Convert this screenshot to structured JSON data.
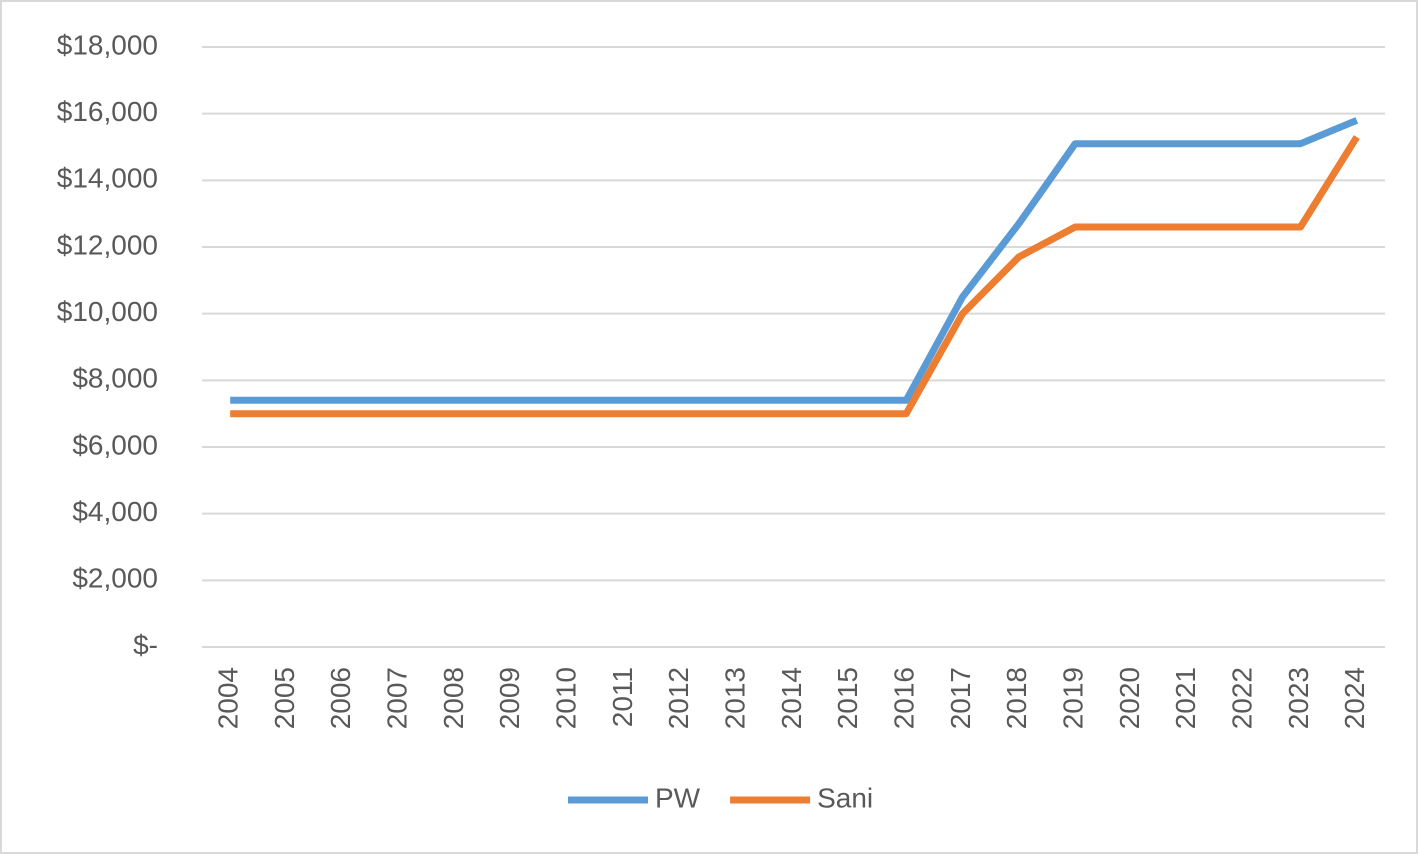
{
  "chart_data": {
    "type": "line",
    "categories": [
      "2004",
      "2005",
      "2006",
      "2007",
      "2008",
      "2009",
      "2010",
      "2011",
      "2012",
      "2013",
      "2014",
      "2015",
      "2016",
      "2017",
      "2018",
      "2019",
      "2020",
      "2021",
      "2022",
      "2023",
      "2024"
    ],
    "series": [
      {
        "name": "PW",
        "color": "#5b9bd5",
        "values": [
          7400,
          7400,
          7400,
          7400,
          7400,
          7400,
          7400,
          7400,
          7400,
          7400,
          7400,
          7400,
          7400,
          10500,
          12700,
          15100,
          15100,
          15100,
          15100,
          15100,
          15800
        ]
      },
      {
        "name": "Sani",
        "color": "#ed7d31",
        "values": [
          7000,
          7000,
          7000,
          7000,
          7000,
          7000,
          7000,
          7000,
          7000,
          7000,
          7000,
          7000,
          7000,
          10000,
          11700,
          12600,
          12600,
          12600,
          12600,
          12600,
          15300
        ]
      }
    ],
    "ylim": [
      0,
      18000
    ],
    "yticks": [
      {
        "value": 0,
        "label": "$-"
      },
      {
        "value": 2000,
        "label": "$2,000"
      },
      {
        "value": 4000,
        "label": "$4,000"
      },
      {
        "value": 6000,
        "label": "$6,000"
      },
      {
        "value": 8000,
        "label": "$8,000"
      },
      {
        "value": 10000,
        "label": "$10,000"
      },
      {
        "value": 12000,
        "label": "$12,000"
      },
      {
        "value": 14000,
        "label": "$14,000"
      },
      {
        "value": 16000,
        "label": "$16,000"
      },
      {
        "value": 18000,
        "label": "$18,000"
      }
    ],
    "grid": true,
    "legend": "bottom"
  }
}
